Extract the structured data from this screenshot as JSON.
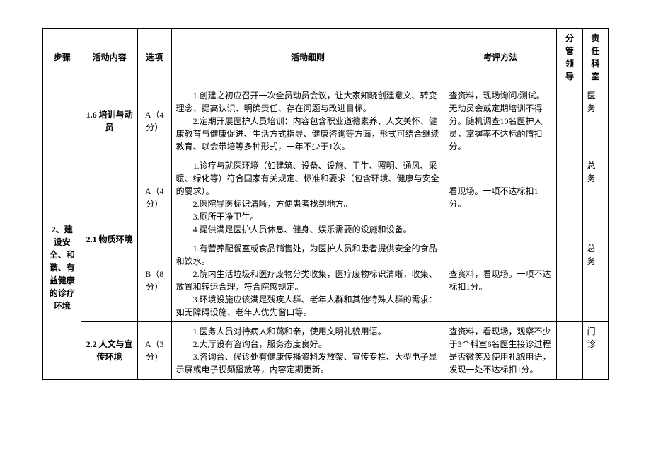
{
  "headers": {
    "step": "步骤",
    "activity": "活动内容",
    "option": "选项",
    "detail": "活动细则",
    "method": "考评方法",
    "leader": "分管领导",
    "dept": "责任科室"
  },
  "rows": [
    {
      "step": "",
      "activity": "1.6 培训与动员",
      "option": "A（4分）",
      "detail": "1.创建之初应召开一次全员动员会议，让大家知晓创建意义、转变理念、提高认识、明确责任、存在问题与改进目标。\n2.定期开展医护人员培训：内容包含职业道德素养、人文关怀、健康教育与健康促进、生活方式指导、健康咨询等方面，形式可结合继续教育、以会带培等多种形式，一年不少于1次。",
      "method": "查资料，现场询问/测试。无动员会或定期培训不得分。随机调查10名医护人员，掌握率不达标酌情扣分。",
      "leader": "",
      "dept": "医务"
    },
    {
      "step": "2、建设安全、和谐、有益健康的诊疗环境",
      "activity": "2.1 物质环境",
      "option": "A（4分）",
      "detail": "1.诊疗与就医环境（如建筑、设备、设施、卫生、照明、通风、采暖、绿化等）符合国家有关规定、标准和要求（包含环境、健康与安全的要求）。\n2.医院导医标识清晰，方便患者找到地方。\n3.厕所干净卫生。\n4.提供满足医护人员休息、健身、娱乐需要的设施和设备。",
      "method": "看现场。一项不达标扣1分。",
      "leader": "",
      "dept": "总务"
    },
    {
      "step": "",
      "activity": "",
      "option": "B（8分）",
      "detail": "1.有营养配餐室或食品销售处，为医护人员和患者提供安全的食品和饮水。\n2.院内生活垃圾和医疗废物分类收集，医疗废物标识清晰，收集、放置和转运合理，符合院感规定。\n3.环境设施应该满足残疾人群、老年人群和其他特殊人群的需求：如无障碍设施、老年人优先窗口等。",
      "method": "查资料，看现场。一项不达标扣1分。",
      "leader": "",
      "dept": "总务"
    },
    {
      "step": "",
      "activity": "2.2 人文与宣传环境",
      "option": "A（3分）",
      "detail": "1.医务人员对待病人和蔼和亲，使用文明礼貌用语。\n2.大厅设有咨询台，服务态度良好。\n3.咨询台、候诊处有健康传播资料发放架、宣传专栏、大型电子显示屏或电子视频播放等，内容定期更新。",
      "method": "查资料，看现场，观察不少于3个科室6名医生接诊过程是否微笑及使用礼貌用语，发现一处不达标扣1分。",
      "leader": "",
      "dept": "门诊"
    }
  ]
}
